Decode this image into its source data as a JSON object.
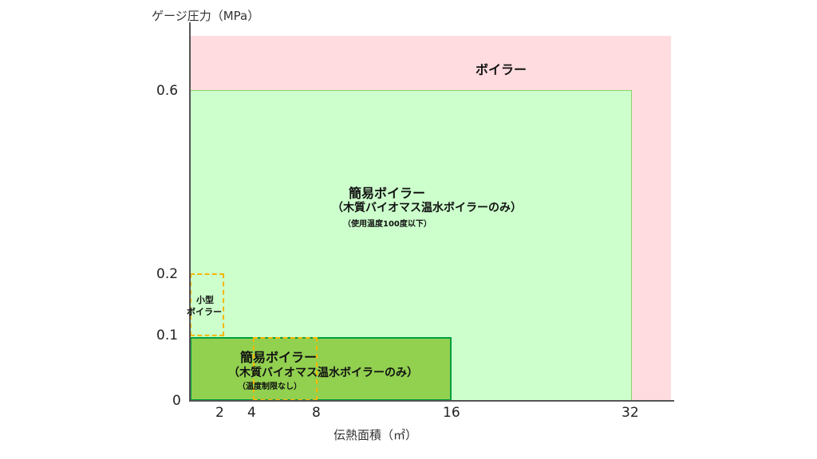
{
  "axes": {
    "y_title": "ゲージ圧力（MPa）",
    "x_title": "伝熱面積（㎡）",
    "y_ticks": [
      "0.6",
      "0.2",
      "0.1",
      "0"
    ],
    "x_ticks": [
      "2",
      "4",
      "8",
      "16",
      "32"
    ]
  },
  "regions": {
    "boiler": {
      "label": "ボイラー",
      "color": "#ffdcdf"
    },
    "simple_large": {
      "title": "簡易ボイラー",
      "subtitle": "（木質バイオマス温水ボイラーのみ）",
      "note": "（使用温度100度以下）",
      "color": "#ccffcc",
      "border": "#8fd16a"
    },
    "small": {
      "line1": "小型",
      "line2": "ボイラー",
      "border": "#f5b800"
    },
    "simple_small": {
      "title": "簡易ボイラー",
      "subtitle": "（木質バイオマス温水ボイラーのみ）",
      "note": "（温度制限なし）",
      "color": "#92d050",
      "border": "#00a040"
    }
  }
}
